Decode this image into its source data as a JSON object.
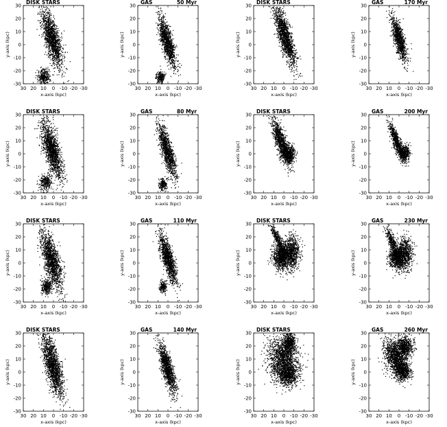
{
  "chart_data": {
    "type": "scatter",
    "layout": "4x4 panel grid",
    "common": {
      "xlabel": "x-axis (kpc)",
      "ylabel": "y-axis (kpc)",
      "xlim": [
        30,
        -30
      ],
      "ylim": [
        -30,
        30
      ],
      "xticks": [
        "30",
        "20",
        "10",
        "0",
        "-10",
        "-20",
        "-30"
      ],
      "yticks": [
        "30",
        "20",
        "10",
        "0",
        "-10",
        "-20",
        "-30"
      ],
      "color": "#000000"
    },
    "panels": [
      {
        "row": 0,
        "col": 0,
        "component": "DISK STARS",
        "time": "",
        "blobs": [
          {
            "x": 2,
            "y": 5,
            "sx": 3.5,
            "sy": 11,
            "rot": -20,
            "n": 1500
          },
          {
            "x": 10,
            "y": -24,
            "sx": 3,
            "sy": 3,
            "rot": 0,
            "n": 300
          }
        ]
      },
      {
        "row": 0,
        "col": 1,
        "component": "GAS",
        "time": "50 Myr",
        "blobs": [
          {
            "x": 1,
            "y": 2,
            "sx": 2.6,
            "sy": 10,
            "rot": -20,
            "n": 1200
          },
          {
            "x": 8,
            "y": -25,
            "sx": 2.2,
            "sy": 2.5,
            "rot": 0,
            "n": 220
          }
        ]
      },
      {
        "row": 0,
        "col": 2,
        "component": "DISK STARS",
        "time": "",
        "blobs": [
          {
            "x": -1,
            "y": 6,
            "sx": 3,
            "sy": 12,
            "rot": -22,
            "n": 1500
          }
        ]
      },
      {
        "row": 0,
        "col": 3,
        "component": "GAS",
        "time": "170 Myr",
        "blobs": [
          {
            "x": 0,
            "y": 4,
            "sx": 2.4,
            "sy": 9,
            "rot": -20,
            "n": 1000
          }
        ]
      },
      {
        "row": 1,
        "col": 0,
        "component": "DISK STARS",
        "time": "",
        "blobs": [
          {
            "x": 2,
            "y": 3,
            "sx": 3.5,
            "sy": 11,
            "rot": -20,
            "n": 1500
          },
          {
            "x": 8,
            "y": -22,
            "sx": 3,
            "sy": 3.2,
            "rot": 0,
            "n": 300
          }
        ]
      },
      {
        "row": 1,
        "col": 1,
        "component": "GAS",
        "time": "80 Myr",
        "blobs": [
          {
            "x": 1,
            "y": 2,
            "sx": 2.6,
            "sy": 10,
            "rot": -20,
            "n": 1200
          },
          {
            "x": 5,
            "y": -23,
            "sx": 2,
            "sy": 2.2,
            "rot": 0,
            "n": 200
          }
        ]
      },
      {
        "row": 1,
        "col": 2,
        "component": "DISK STARS",
        "time": "",
        "blobs": [
          {
            "x": 3,
            "y": 9,
            "sx": 2.5,
            "sy": 9,
            "rot": -25,
            "n": 1000
          },
          {
            "x": -4,
            "y": 0,
            "sx": 3.5,
            "sy": 3.5,
            "rot": 0,
            "n": 600
          }
        ]
      },
      {
        "row": 1,
        "col": 3,
        "component": "GAS",
        "time": "200 Myr",
        "blobs": [
          {
            "x": 3,
            "y": 10,
            "sx": 1.8,
            "sy": 7,
            "rot": -25,
            "n": 700
          },
          {
            "x": -5,
            "y": 1,
            "sx": 2.8,
            "sy": 3,
            "rot": 0,
            "n": 450
          }
        ]
      },
      {
        "row": 2,
        "col": 0,
        "component": "DISK STARS",
        "time": "",
        "blobs": [
          {
            "x": 2,
            "y": 2,
            "sx": 3.5,
            "sy": 11,
            "rot": -20,
            "n": 1500
          },
          {
            "x": 7,
            "y": -18,
            "sx": 2.5,
            "sy": 3,
            "rot": 0,
            "n": 300
          }
        ]
      },
      {
        "row": 2,
        "col": 1,
        "component": "GAS",
        "time": "110 Myr",
        "blobs": [
          {
            "x": 0,
            "y": 3,
            "sx": 2.6,
            "sy": 10,
            "rot": -20,
            "n": 1200
          },
          {
            "x": 5,
            "y": -18,
            "sx": 1.8,
            "sy": 2.5,
            "rot": 0,
            "n": 200
          }
        ]
      },
      {
        "row": 2,
        "col": 2,
        "component": "DISK STARS",
        "time": "",
        "blobs": [
          {
            "x": 6,
            "y": 18,
            "sx": 1.5,
            "sy": 6,
            "rot": -30,
            "n": 400
          },
          {
            "x": 3,
            "y": 5,
            "sx": 4,
            "sy": 5,
            "rot": 0,
            "n": 900
          },
          {
            "x": -7,
            "y": 8,
            "sx": 4,
            "sy": 6,
            "rot": 0,
            "n": 900
          }
        ]
      },
      {
        "row": 2,
        "col": 3,
        "component": "GAS",
        "time": "230 Myr",
        "blobs": [
          {
            "x": 8,
            "y": 18,
            "sx": 1.5,
            "sy": 5,
            "rot": -30,
            "n": 300
          },
          {
            "x": 3,
            "y": 5,
            "sx": 3.5,
            "sy": 4.5,
            "rot": 0,
            "n": 800
          },
          {
            "x": -5,
            "y": 7,
            "sx": 4,
            "sy": 6,
            "rot": 0,
            "n": 800
          }
        ]
      },
      {
        "row": 3,
        "col": 0,
        "component": "DISK STARS",
        "time": "",
        "blobs": [
          {
            "x": 1,
            "y": 5,
            "sx": 3.5,
            "sy": 12,
            "rot": -18,
            "n": 1600
          }
        ]
      },
      {
        "row": 3,
        "col": 1,
        "component": "GAS",
        "time": "140 Myr",
        "blobs": [
          {
            "x": 1,
            "y": 3,
            "sx": 2.6,
            "sy": 10,
            "rot": -20,
            "n": 1200
          }
        ]
      },
      {
        "row": 3,
        "col": 2,
        "component": "DISK STARS",
        "time": "",
        "blobs": [
          {
            "x": 1,
            "y": 10,
            "sx": 7,
            "sy": 8,
            "rot": -30,
            "n": 1500
          },
          {
            "x": -5,
            "y": 23,
            "sx": 3,
            "sy": 4,
            "rot": 0,
            "n": 500
          },
          {
            "x": -4,
            "y": -2,
            "sx": 5,
            "sy": 4,
            "rot": 0,
            "n": 700
          }
        ]
      },
      {
        "row": 3,
        "col": 3,
        "component": "GAS",
        "time": "260 Myr",
        "blobs": [
          {
            "x": 4,
            "y": 12,
            "sx": 5,
            "sy": 7,
            "rot": -30,
            "n": 1100
          },
          {
            "x": -5,
            "y": 20,
            "sx": 4,
            "sy": 4,
            "rot": 0,
            "n": 600
          },
          {
            "x": -3,
            "y": 1,
            "sx": 4,
            "sy": 3.5,
            "rot": 0,
            "n": 700
          }
        ]
      }
    ]
  }
}
